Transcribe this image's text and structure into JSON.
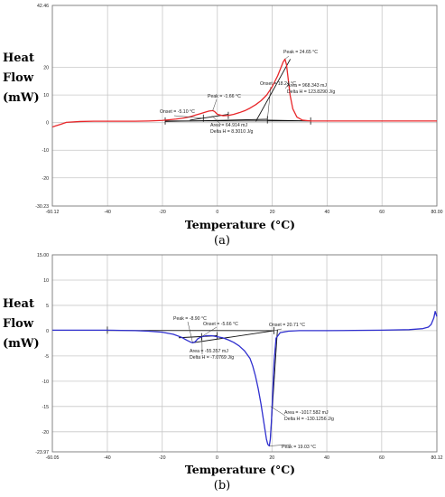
{
  "chart_data": [
    {
      "type": "line",
      "panel_label": "(a)",
      "ylabel_lines": [
        "Heat",
        "Flow",
        "(mW)"
      ],
      "xlabel": "Temperature (°C)",
      "xlim": [
        -60.12,
        80.0
      ],
      "ylim": [
        -30.23,
        42.46
      ],
      "x_tick_labels": [
        "-60.12",
        "-40",
        "-20",
        "0",
        "20",
        "40",
        "60",
        "80.00"
      ],
      "x_tick_values": [
        -60.12,
        -40,
        -20,
        0,
        20,
        40,
        60,
        80
      ],
      "y_tick_labels": [
        "42.46",
        "20",
        "10",
        "0",
        "-10",
        "-20",
        "-30.23"
      ],
      "y_tick_values": [
        42.46,
        20,
        10,
        0,
        -10,
        -20,
        -30.23
      ],
      "grid": true,
      "color": "#e8272a",
      "series": [
        {
          "x": [
            -60.12,
            -59,
            -57,
            -55,
            -50,
            -45,
            -40,
            -35,
            -30,
            -25,
            -20,
            -15,
            -12,
            -10,
            -8,
            -6,
            -4,
            -3,
            -2,
            -1.66,
            -1,
            0,
            2,
            4,
            6,
            8,
            10,
            12,
            14,
            16,
            18,
            19,
            20,
            21,
            22,
            23,
            24,
            24.65,
            25.2,
            25.8,
            26.5,
            27.5,
            29,
            31,
            34,
            38,
            45,
            55,
            65,
            75,
            80
          ],
          "y": [
            -1.6,
            -1.2,
            -0.6,
            0.1,
            0.4,
            0.5,
            0.5,
            0.5,
            0.5,
            0.6,
            0.8,
            1.3,
            1.7,
            2.1,
            2.7,
            3.3,
            3.9,
            4.2,
            4.3,
            4.35,
            4.0,
            3.0,
            2.5,
            2.6,
            3.0,
            3.6,
            4.3,
            5.3,
            6.5,
            8.0,
            10.0,
            11.5,
            13.0,
            15.0,
            17.0,
            19.5,
            22.0,
            23.0,
            21.0,
            16.0,
            10.0,
            5.0,
            2.0,
            0.9,
            0.6,
            0.6,
            0.6,
            0.6,
            0.6,
            0.6,
            0.6
          ]
        }
      ],
      "annotations": [
        {
          "text": "Peak = 24.65 °C"
        },
        {
          "text": "Onset = 18.24 °C"
        },
        {
          "text": "Area = 968.343 mJ"
        },
        {
          "text": "Delta H = 123.8290 J/g"
        },
        {
          "text": "Peak = -1.66 °C"
        },
        {
          "text": "Onset = -5.10 °C"
        },
        {
          "text": "Area = 64.914 mJ"
        },
        {
          "text": "Delta H = 8.3010 J/g"
        }
      ]
    },
    {
      "type": "line",
      "panel_label": "(b)",
      "ylabel_lines": [
        "Heat",
        "Flow",
        "(mW)"
      ],
      "xlabel": "Temperature (°C)",
      "xlim": [
        -60.05,
        80.12
      ],
      "ylim": [
        -23.97,
        15.0
      ],
      "x_tick_labels": [
        "-60.05",
        "-40",
        "-20",
        "0",
        "20",
        "40",
        "60",
        "80.12"
      ],
      "x_tick_values": [
        -60.05,
        -40,
        -20,
        0,
        20,
        40,
        60,
        80.12
      ],
      "y_tick_labels": [
        "15.00",
        "10",
        "5",
        "0",
        "-5",
        "-10",
        "-15",
        "-20",
        "-23.97"
      ],
      "y_tick_values": [
        15,
        10,
        5,
        0,
        -5,
        -10,
        -15,
        -20,
        -23.97
      ],
      "grid": true,
      "color": "#2f2fcf",
      "series": [
        {
          "x": [
            -60.05,
            -55,
            -50,
            -45,
            -40,
            -35,
            -30,
            -25,
            -20,
            -16,
            -13,
            -11,
            -9.5,
            -8.9,
            -8,
            -7,
            -6,
            -5.5,
            -4,
            -2,
            0,
            2,
            4,
            6,
            8,
            10,
            12,
            13,
            14,
            15,
            16,
            17,
            18,
            18.5,
            19.03,
            19.4,
            19.8,
            20.3,
            20.8,
            21.5,
            23,
            26,
            30,
            40,
            50,
            60,
            70,
            75,
            77,
            78,
            79,
            79.5,
            80.12
          ],
          "y": [
            0.1,
            0.1,
            0.1,
            0.1,
            0.1,
            0.05,
            0.0,
            -0.1,
            -0.3,
            -0.7,
            -1.3,
            -1.9,
            -2.3,
            -2.4,
            -2.2,
            -1.6,
            -1.3,
            -1.2,
            -1.0,
            -1.0,
            -1.2,
            -1.4,
            -1.8,
            -2.3,
            -3.0,
            -4.0,
            -5.5,
            -7.0,
            -9.0,
            -11.5,
            -14.5,
            -18.0,
            -21.5,
            -22.5,
            -22.8,
            -21.5,
            -18.0,
            -12.0,
            -6.0,
            -1.5,
            -0.4,
            -0.1,
            0.0,
            0.0,
            0.05,
            0.1,
            0.2,
            0.4,
            0.7,
            1.2,
            2.5,
            3.8,
            2.8
          ]
        }
      ],
      "annotations": [
        {
          "text": "Peak = -8.90 °C"
        },
        {
          "text": "Onset = -5.66 °C"
        },
        {
          "text": "Onset = 20.71 °C"
        },
        {
          "text": "Area = -55.357 mJ"
        },
        {
          "text": "Delta H = -7.0769 J/g"
        },
        {
          "text": "Area = -1017.582 mJ"
        },
        {
          "text": "Delta H = -130.1256 J/g"
        },
        {
          "text": "Peak = 19.03 °C"
        }
      ]
    }
  ]
}
